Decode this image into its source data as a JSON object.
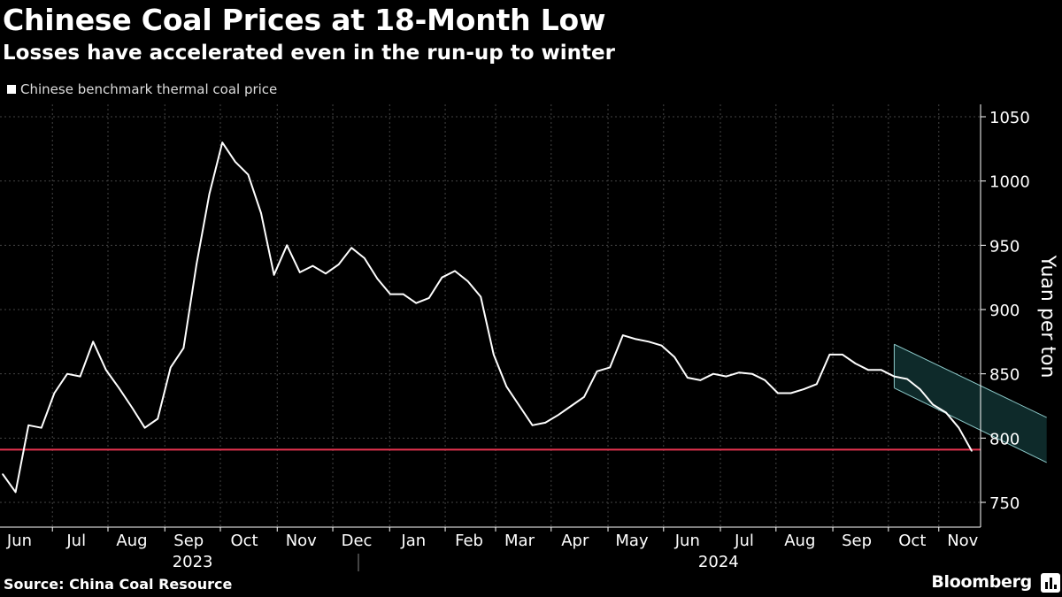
{
  "header": {
    "title": "Chinese Coal Prices at 18-Month Low",
    "subtitle": "Losses have accelerated even in the run-up to winter"
  },
  "legend": {
    "label": "Chinese benchmark thermal coal price"
  },
  "footer": {
    "source": "Source: China Coal Resource",
    "brand": "Bloomberg"
  },
  "colors": {
    "background": "#000000",
    "line": "#ffffff",
    "reference_line": "#e8334f",
    "channel_fill": "#0e2a2a",
    "channel_edge": "#8cc8c8",
    "grid": "#444444"
  },
  "chart_data": {
    "type": "line",
    "ylabel": "Yuan per ton",
    "y_axis_side": "right",
    "ylim": [
      750,
      1050
    ],
    "yticks": [
      750,
      800,
      850,
      900,
      950,
      1000,
      1050
    ],
    "grid": true,
    "legend_position": "top-left",
    "x_labels": [
      {
        "label": "Jun",
        "week": 1.3
      },
      {
        "label": "Jul",
        "week": 5.7
      },
      {
        "label": "Aug",
        "week": 10.0
      },
      {
        "label": "Sep",
        "week": 14.4
      },
      {
        "label": "Oct",
        "week": 18.7
      },
      {
        "label": "Nov",
        "week": 23.1
      },
      {
        "label": "Dec",
        "week": 27.4
      },
      {
        "label": "Jan",
        "week": 31.8
      },
      {
        "label": "Feb",
        "week": 36.1
      },
      {
        "label": "Mar",
        "week": 40.0
      },
      {
        "label": "Apr",
        "week": 44.3
      },
      {
        "label": "May",
        "week": 48.7
      },
      {
        "label": "Jun",
        "week": 53.0
      },
      {
        "label": "Jul",
        "week": 57.4
      },
      {
        "label": "Aug",
        "week": 61.7
      },
      {
        "label": "Sep",
        "week": 66.1
      },
      {
        "label": "Oct",
        "week": 70.4
      },
      {
        "label": "Nov",
        "week": 74.3
      }
    ],
    "year_labels": [
      {
        "label": "2023",
        "week": 14.7
      },
      {
        "label": "2024",
        "week": 55.4
      }
    ],
    "series": [
      {
        "name": "Chinese benchmark thermal coal price",
        "values": [
          772,
          758,
          810,
          808,
          835,
          850,
          848,
          875,
          853,
          839,
          824,
          808,
          815,
          855,
          870,
          935,
          990,
          1030,
          1015,
          1005,
          975,
          927,
          950,
          929,
          934,
          928,
          935,
          948,
          940,
          924,
          912,
          912,
          905,
          909,
          925,
          930,
          922,
          910,
          865,
          840,
          825,
          810,
          812,
          818,
          825,
          832,
          852,
          855,
          880,
          877,
          875,
          872,
          863,
          847,
          845,
          850,
          848,
          851,
          850,
          845,
          835,
          835,
          838,
          842,
          865,
          865,
          858,
          853,
          853,
          848,
          846,
          838,
          826,
          820,
          808,
          790
        ]
      }
    ],
    "reference_line": 791,
    "channel": {
      "start_week": 69.0,
      "end_week": 80.8,
      "upper": [
        873,
        816
      ],
      "lower": [
        839,
        781
      ]
    }
  }
}
